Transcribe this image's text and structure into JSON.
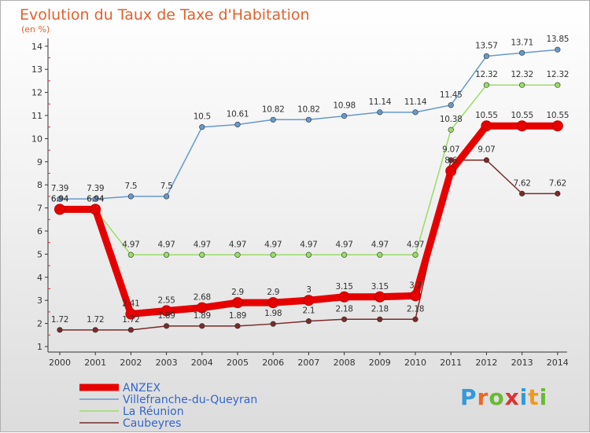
{
  "chart_data": {
    "type": "line",
    "title": "Evolution du Taux de Taxe d'Habitation",
    "subtitle": "(en %)",
    "xlabel": "",
    "ylabel": "",
    "ylim": [
      1,
      14
    ],
    "yticks": [
      "1",
      "2",
      "3",
      "4",
      "5",
      "6",
      "7",
      "8",
      "9",
      "10",
      "11",
      "12",
      "13",
      "14"
    ],
    "categories": [
      "2000",
      "2001",
      "2002",
      "2003",
      "2004",
      "2005",
      "2006",
      "2007",
      "2008",
      "2009",
      "2010",
      "2011",
      "2012",
      "2013",
      "2014"
    ],
    "grid": false,
    "legend_position": "bottom-left",
    "series": [
      {
        "name": "ANZEX",
        "color": "#e60000",
        "values": [
          6.94,
          6.94,
          2.41,
          2.55,
          2.68,
          2.9,
          2.9,
          3.0,
          3.15,
          3.15,
          3.2,
          8.6,
          10.55,
          10.55,
          10.55
        ],
        "labels": [
          "6.94",
          "6.94",
          "2.41",
          "2.55",
          "2.68",
          "2.9",
          "2.9",
          "3",
          "3.15",
          "3.15",
          "3.2",
          "8.6",
          "10.55",
          "10.55",
          "10.55"
        ]
      },
      {
        "name": "Villefranche-du-Queyran",
        "color": "#6699cc",
        "values": [
          7.39,
          7.39,
          7.5,
          7.5,
          10.5,
          10.61,
          10.82,
          10.82,
          10.98,
          11.14,
          11.14,
          11.45,
          13.57,
          13.71,
          13.85
        ],
        "labels": [
          "7.39",
          "7.39",
          "7.5",
          "7.5",
          "10.5",
          "10.61",
          "10.82",
          "10.82",
          "10.98",
          "11.14",
          "11.14",
          "11.45",
          "13.57",
          "13.71",
          "13.85"
        ]
      },
      {
        "name": "La Réunion",
        "color": "#99dd66",
        "values": [
          6.94,
          6.94,
          4.97,
          4.97,
          4.97,
          4.97,
          4.97,
          4.97,
          4.97,
          4.97,
          4.97,
          10.38,
          12.32,
          12.32,
          12.32
        ],
        "labels": [
          "6.94",
          "6.94",
          "4.97",
          "4.97",
          "4.97",
          "4.97",
          "4.97",
          "4.97",
          "4.97",
          "4.97",
          "4.97",
          "10.38",
          "12.32",
          "12.32",
          "12.32"
        ]
      },
      {
        "name": "Caubeyres",
        "color": "#7a2a2a",
        "values": [
          1.72,
          1.72,
          1.72,
          1.89,
          1.89,
          1.89,
          1.98,
          2.1,
          2.18,
          2.18,
          2.18,
          9.07,
          9.07,
          7.62,
          7.62
        ],
        "labels": [
          "1.72",
          "1.72",
          "1.72",
          "1.89",
          "1.89",
          "1.89",
          "1.98",
          "2.1",
          "2.18",
          "2.18",
          "2.18",
          "9.07",
          "9.07",
          "7.62",
          "7.62"
        ]
      }
    ]
  },
  "brand": {
    "letters": [
      "P",
      "r",
      "o",
      "x",
      "i",
      "t",
      "i"
    ],
    "colors": [
      "#3399dd",
      "#ee6622",
      "#66bb33",
      "#dd3333",
      "#3399dd",
      "#ee9922",
      "#66bb33"
    ]
  }
}
